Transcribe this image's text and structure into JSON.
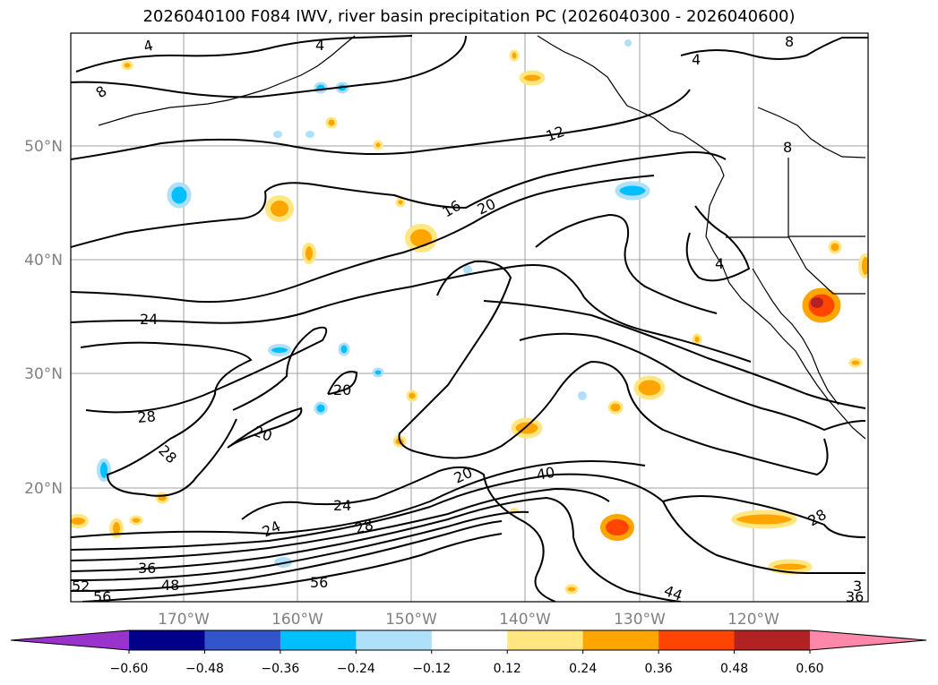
{
  "title": "2026040100 F084 IWV, river basin precipitation PC (2026040300 - 2026040600)",
  "axes": {
    "lon_labels": [
      "170°W",
      "160°W",
      "150°W",
      "140°W",
      "130°W",
      "120°W"
    ],
    "lat_labels": [
      "50°N",
      "40°N",
      "30°N",
      "20°N"
    ]
  },
  "contour_labels": [
    "4",
    "8",
    "4",
    "4",
    "8",
    "12",
    "16",
    "20",
    "8",
    "4",
    "24",
    "28",
    "28",
    "20",
    "20",
    "20",
    "24",
    "24",
    "28",
    "40",
    "36",
    "48",
    "52",
    "56",
    "56",
    "44",
    "28",
    "3",
    "36"
  ],
  "colorbar": {
    "colors": [
      "#9933cc",
      "#00008b",
      "#3355cc",
      "#00bfff",
      "#aee0fa",
      "#ffffff",
      "#ffe680",
      "#ffa500",
      "#ff4500",
      "#b22222",
      "#ff88aa"
    ],
    "ticks": [
      "−0.60",
      "−0.48",
      "−0.36",
      "−0.24",
      "−0.12",
      "0.12",
      "0.24",
      "0.36",
      "0.48",
      "0.60"
    ]
  },
  "colors": {
    "contour": "#000000",
    "grid": "#a0a0a0",
    "axis_label": "#808080"
  }
}
